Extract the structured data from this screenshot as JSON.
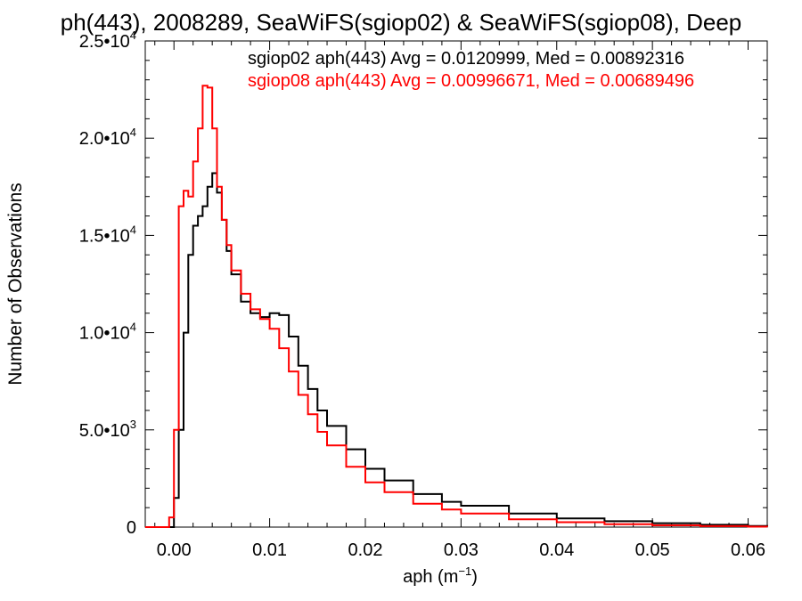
{
  "chart_data": {
    "type": "line",
    "title": "ph(443), 2008289, SeaWiFS(sgiop02) & SeaWiFS(sgiop08), Deep",
    "xlabel_main": "aph (m",
    "xlabel_sup": "−1",
    "xlabel_close": ")",
    "ylabel": "Number of Observations",
    "xlim": [
      -0.003,
      0.062
    ],
    "ylim": [
      0,
      25000
    ],
    "x_ticks": [
      {
        "value": 0.0,
        "label": "0.00"
      },
      {
        "value": 0.01,
        "label": "0.01"
      },
      {
        "value": 0.02,
        "label": "0.02"
      },
      {
        "value": 0.03,
        "label": "0.03"
      },
      {
        "value": 0.04,
        "label": "0.04"
      },
      {
        "value": 0.05,
        "label": "0.05"
      },
      {
        "value": 0.06,
        "label": "0.06"
      }
    ],
    "y_ticks": [
      {
        "value": 0,
        "base": "0",
        "sup": ""
      },
      {
        "value": 5000,
        "base": "5.0•10",
        "sup": "3"
      },
      {
        "value": 10000,
        "base": "1.0•10",
        "sup": "4"
      },
      {
        "value": 15000,
        "base": "1.5•10",
        "sup": "4"
      },
      {
        "value": 20000,
        "base": "2.0•10",
        "sup": "4"
      },
      {
        "value": 25000,
        "base": "2.5•10",
        "sup": "4"
      }
    ],
    "legend": [
      "sgiop02 aph(443) Avg = 0.0120999, Med = 0.00892316",
      "sgiop08 aph(443) Avg = 0.00996671, Med = 0.00689496"
    ],
    "series": [
      {
        "color": "#000000",
        "x": [
          -0.003,
          -0.0005,
          0.0,
          0.0005,
          0.001,
          0.0015,
          0.002,
          0.0025,
          0.003,
          0.0035,
          0.004,
          0.0045,
          0.005,
          0.0055,
          0.006,
          0.007,
          0.008,
          0.009,
          0.01,
          0.011,
          0.012,
          0.013,
          0.014,
          0.015,
          0.016,
          0.018,
          0.02,
          0.022,
          0.025,
          0.028,
          0.03,
          0.035,
          0.04,
          0.045,
          0.05,
          0.055,
          0.06,
          0.062
        ],
        "y": [
          0,
          0,
          1500,
          5000,
          10000,
          14000,
          15500,
          16000,
          16500,
          17500,
          18200,
          17200,
          15800,
          14200,
          13000,
          11600,
          11000,
          10800,
          11000,
          10900,
          9800,
          8300,
          7100,
          6000,
          5200,
          4000,
          3000,
          2400,
          1700,
          1300,
          1100,
          700,
          450,
          300,
          200,
          120,
          60,
          30
        ]
      },
      {
        "color": "#ff0000",
        "x": [
          -0.003,
          -0.001,
          -0.0005,
          0.0,
          0.0005,
          0.001,
          0.0015,
          0.002,
          0.0025,
          0.003,
          0.0035,
          0.004,
          0.0045,
          0.005,
          0.0055,
          0.006,
          0.007,
          0.008,
          0.009,
          0.01,
          0.011,
          0.012,
          0.013,
          0.014,
          0.015,
          0.016,
          0.018,
          0.02,
          0.022,
          0.025,
          0.028,
          0.03,
          0.035,
          0.04,
          0.045,
          0.05,
          0.055,
          0.06,
          0.062
        ],
        "y": [
          0,
          0,
          500,
          5000,
          16500,
          17300,
          17000,
          18800,
          20500,
          22700,
          22600,
          20500,
          17500,
          15800,
          14500,
          13200,
          12000,
          11200,
          10700,
          10200,
          9200,
          8000,
          6800,
          5800,
          4900,
          4200,
          3100,
          2300,
          1800,
          1200,
          900,
          700,
          400,
          250,
          150,
          90,
          50,
          25,
          10
        ]
      }
    ]
  }
}
